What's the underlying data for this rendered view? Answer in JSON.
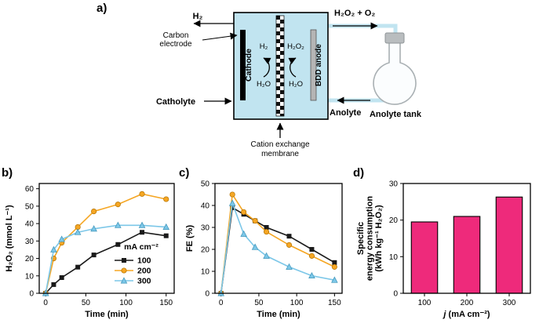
{
  "figure": {
    "panel_a_label": "a)",
    "panel_b_label": "b)",
    "panel_c_label": "c)",
    "panel_d_label": "d)"
  },
  "diagram": {
    "h2_out_label": "H₂",
    "carbon_electrode_line1": "Carbon",
    "carbon_electrode_line2": "electrode",
    "cathode_label": "Cathode",
    "bdd_anode_label": "BDD anode",
    "cell_h2": "H₂",
    "cell_h2o2": "H₂O₂",
    "cell_h2o_left": "H₂O",
    "cell_h2o_right": "H₂O",
    "product_out_label": "H₂O₂ + O₂",
    "catholyte_label": "Catholyte",
    "anolyte_label": "Anolyte",
    "anolyte_tank_label": "Anolyte tank",
    "membrane_label_line1": "Cation exchange",
    "membrane_label_line2": "membrane",
    "colors": {
      "cell_fill": "#c1e4f0",
      "tube": "#c1e4f0",
      "anode_gray": "#b5b5b5"
    }
  },
  "chart_data": [
    {
      "id": "chart-b",
      "type": "line",
      "xlabel": "Time (min)",
      "ylabel_lines": [
        "H₂O₂ (mmol L⁻¹)"
      ],
      "x": [
        0,
        10,
        20,
        40,
        60,
        90,
        120,
        150
      ],
      "series": [
        {
          "name": "100",
          "color": "#1a1a1a",
          "edge": "#000000",
          "marker": "square",
          "values": [
            0,
            5,
            9,
            15,
            22,
            28,
            35,
            33
          ]
        },
        {
          "name": "200",
          "color": "#f5a623",
          "edge": "#b27100",
          "marker": "circle",
          "values": [
            0,
            20,
            29,
            38,
            47,
            51,
            57,
            54
          ]
        },
        {
          "name": "300",
          "color": "#7cc7e8",
          "edge": "#3d93b8",
          "marker": "triangle",
          "values": [
            0,
            25,
            31,
            35,
            37,
            39,
            39,
            38
          ]
        }
      ],
      "xlim": [
        -8,
        160
      ],
      "ylim": [
        0,
        63
      ],
      "xticks": [
        0,
        50,
        100,
        150
      ],
      "yticks": [
        0,
        10,
        20,
        30,
        40,
        50,
        60
      ],
      "grid": false,
      "legend": {
        "title": "mA cm⁻²",
        "position": "lower-right"
      }
    },
    {
      "id": "chart-c",
      "type": "line",
      "xlabel": "Time (min)",
      "ylabel_lines": [
        "FE (%)"
      ],
      "x": [
        0,
        15,
        30,
        45,
        60,
        90,
        120,
        150
      ],
      "series": [
        {
          "name": "100",
          "color": "#1a1a1a",
          "edge": "#000000",
          "marker": "square",
          "values": [
            0,
            39,
            36,
            33,
            30,
            26,
            20,
            14
          ]
        },
        {
          "name": "200",
          "color": "#f5a623",
          "edge": "#b27100",
          "marker": "circle",
          "values": [
            0,
            45,
            37,
            33,
            28,
            22,
            17,
            12
          ]
        },
        {
          "name": "300",
          "color": "#7cc7e8",
          "edge": "#3d93b8",
          "marker": "triangle",
          "values": [
            0,
            41,
            27,
            21,
            17,
            12,
            8,
            6
          ]
        }
      ],
      "xlim": [
        -8,
        160
      ],
      "ylim": [
        0,
        50
      ],
      "xticks": [
        0,
        50,
        100,
        150
      ],
      "yticks": [
        0,
        10,
        20,
        30,
        40,
        50
      ],
      "grid": false
    },
    {
      "id": "chart-d",
      "type": "bar",
      "xlabel_parts": [
        {
          "text": "j",
          "italic": true
        },
        {
          "text": " (mA cm⁻²)",
          "italic": false
        }
      ],
      "ylabel_lines": [
        "Specific",
        "energy consumption",
        "(kWh kg⁻¹ H₂O₂)"
      ],
      "categories": [
        "100",
        "200",
        "300"
      ],
      "values": [
        19.5,
        21,
        26.3
      ],
      "bar_color": "#ee2a7b",
      "ylim": [
        0,
        30
      ],
      "yticks": [
        0,
        10,
        20,
        30
      ],
      "grid": false
    }
  ]
}
